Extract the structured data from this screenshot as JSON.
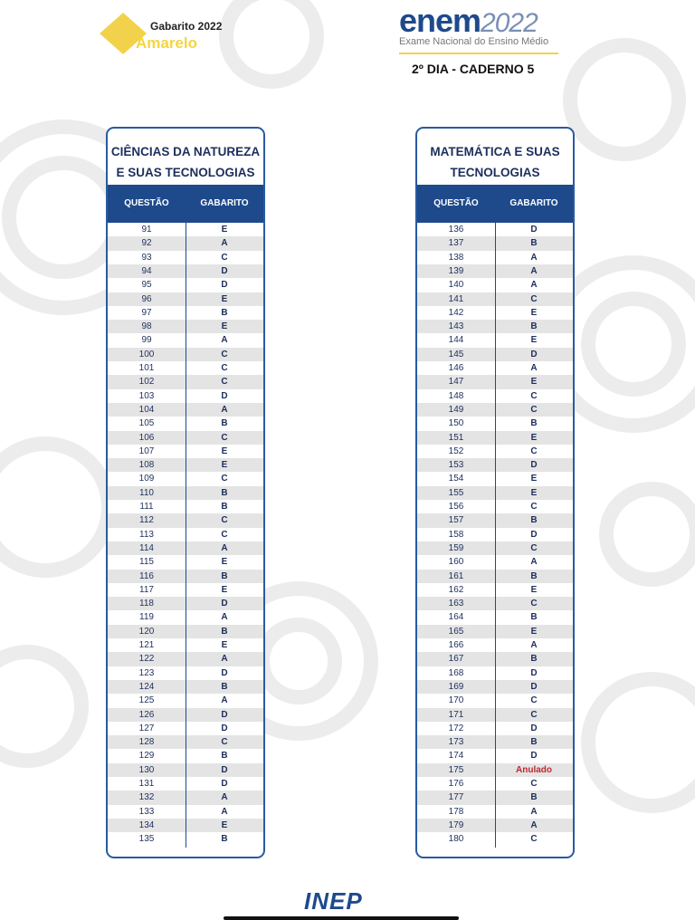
{
  "header": {
    "gabarito": "Gabarito 2022",
    "cor": "Amarelo",
    "logo": "enem",
    "logo_year": "2022",
    "exam_name": "Exame Nacional do Ensino Médio",
    "caderno": "2º DIA - CADERNO 5"
  },
  "tables": [
    {
      "title": [
        "CIÊNCIAS DA NATUREZA",
        "E SUAS TECNOLOGIAS"
      ],
      "columns": [
        "QUESTÃO",
        "GABARITO"
      ],
      "rows": [
        [
          91,
          "E"
        ],
        [
          92,
          "A"
        ],
        [
          93,
          "C"
        ],
        [
          94,
          "D"
        ],
        [
          95,
          "D"
        ],
        [
          96,
          "E"
        ],
        [
          97,
          "B"
        ],
        [
          98,
          "E"
        ],
        [
          99,
          "A"
        ],
        [
          100,
          "C"
        ],
        [
          101,
          "C"
        ],
        [
          102,
          "C"
        ],
        [
          103,
          "D"
        ],
        [
          104,
          "A"
        ],
        [
          105,
          "B"
        ],
        [
          106,
          "C"
        ],
        [
          107,
          "E"
        ],
        [
          108,
          "E"
        ],
        [
          109,
          "C"
        ],
        [
          110,
          "B"
        ],
        [
          111,
          "B"
        ],
        [
          112,
          "C"
        ],
        [
          113,
          "C"
        ],
        [
          114,
          "A"
        ],
        [
          115,
          "E"
        ],
        [
          116,
          "B"
        ],
        [
          117,
          "E"
        ],
        [
          118,
          "D"
        ],
        [
          119,
          "A"
        ],
        [
          120,
          "B"
        ],
        [
          121,
          "E"
        ],
        [
          122,
          "A"
        ],
        [
          123,
          "D"
        ],
        [
          124,
          "B"
        ],
        [
          125,
          "A"
        ],
        [
          126,
          "D"
        ],
        [
          127,
          "D"
        ],
        [
          128,
          "C"
        ],
        [
          129,
          "B"
        ],
        [
          130,
          "D"
        ],
        [
          131,
          "D"
        ],
        [
          132,
          "A"
        ],
        [
          133,
          "A"
        ],
        [
          134,
          "E"
        ],
        [
          135,
          "B"
        ]
      ]
    },
    {
      "title": [
        "MATEMÁTICA E SUAS",
        "TECNOLOGIAS"
      ],
      "columns": [
        "QUESTÃO",
        "GABARITO"
      ],
      "rows": [
        [
          136,
          "D"
        ],
        [
          137,
          "B"
        ],
        [
          138,
          "A"
        ],
        [
          139,
          "A"
        ],
        [
          140,
          "A"
        ],
        [
          141,
          "C"
        ],
        [
          142,
          "E"
        ],
        [
          143,
          "B"
        ],
        [
          144,
          "E"
        ],
        [
          145,
          "D"
        ],
        [
          146,
          "A"
        ],
        [
          147,
          "E"
        ],
        [
          148,
          "C"
        ],
        [
          149,
          "C"
        ],
        [
          150,
          "B"
        ],
        [
          151,
          "E"
        ],
        [
          152,
          "C"
        ],
        [
          153,
          "D"
        ],
        [
          154,
          "E"
        ],
        [
          155,
          "E"
        ],
        [
          156,
          "C"
        ],
        [
          157,
          "B"
        ],
        [
          158,
          "D"
        ],
        [
          159,
          "C"
        ],
        [
          160,
          "A"
        ],
        [
          161,
          "B"
        ],
        [
          162,
          "E"
        ],
        [
          163,
          "C"
        ],
        [
          164,
          "B"
        ],
        [
          165,
          "E"
        ],
        [
          166,
          "A"
        ],
        [
          167,
          "B"
        ],
        [
          168,
          "D"
        ],
        [
          169,
          "D"
        ],
        [
          170,
          "C"
        ],
        [
          171,
          "C"
        ],
        [
          172,
          "D"
        ],
        [
          173,
          "B"
        ],
        [
          174,
          "D"
        ],
        [
          175,
          "Anulado"
        ],
        [
          176,
          "C"
        ],
        [
          177,
          "B"
        ],
        [
          178,
          "A"
        ],
        [
          179,
          "A"
        ],
        [
          180,
          "C"
        ]
      ]
    }
  ],
  "footer": {
    "logo": "INEP"
  }
}
